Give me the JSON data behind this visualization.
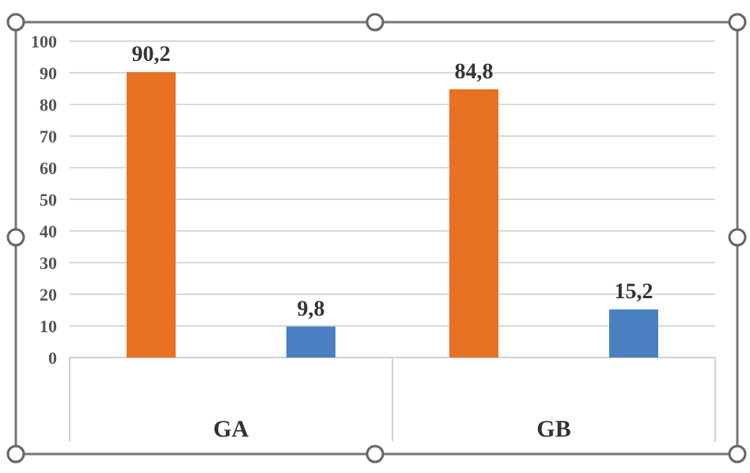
{
  "chart_data": {
    "type": "bar",
    "categories": [
      "GA",
      "GB"
    ],
    "series": [
      {
        "color": "#e87124",
        "values": [
          90.2,
          84.8
        ],
        "value_labels": [
          "90,2",
          "84,8"
        ]
      },
      {
        "color": "#4a7fc1",
        "values": [
          9.8,
          15.2
        ],
        "value_labels": [
          "9,8",
          "15,2"
        ]
      }
    ],
    "ylim": [
      0,
      100
    ],
    "yticks": [
      0,
      10,
      20,
      30,
      40,
      50,
      60,
      70,
      80,
      90,
      100
    ],
    "grid": "y"
  }
}
